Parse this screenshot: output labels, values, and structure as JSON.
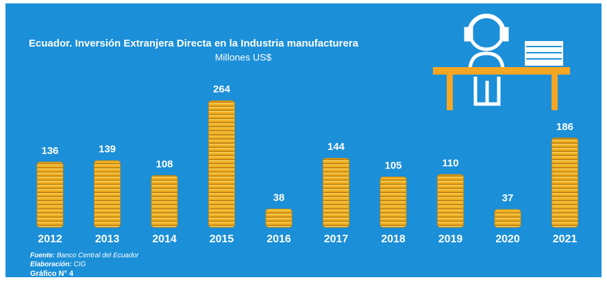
{
  "chart_data": {
    "type": "bar",
    "title": "Ecuador. Inversión Extranjera Directa en la Industria manufacturera",
    "subtitle": "Millones US$",
    "categories": [
      "2012",
      "2013",
      "2014",
      "2015",
      "2016",
      "2017",
      "2018",
      "2019",
      "2020",
      "2021"
    ],
    "values": [
      136,
      139,
      108,
      264,
      38,
      144,
      105,
      110,
      37,
      186
    ],
    "color": "#f0b022",
    "source_label": "Fuente:",
    "source": "Banco Central del Ecuador",
    "author_label": "Elaboración:",
    "author": "CIG",
    "figure": "Gráfico N° 4"
  }
}
